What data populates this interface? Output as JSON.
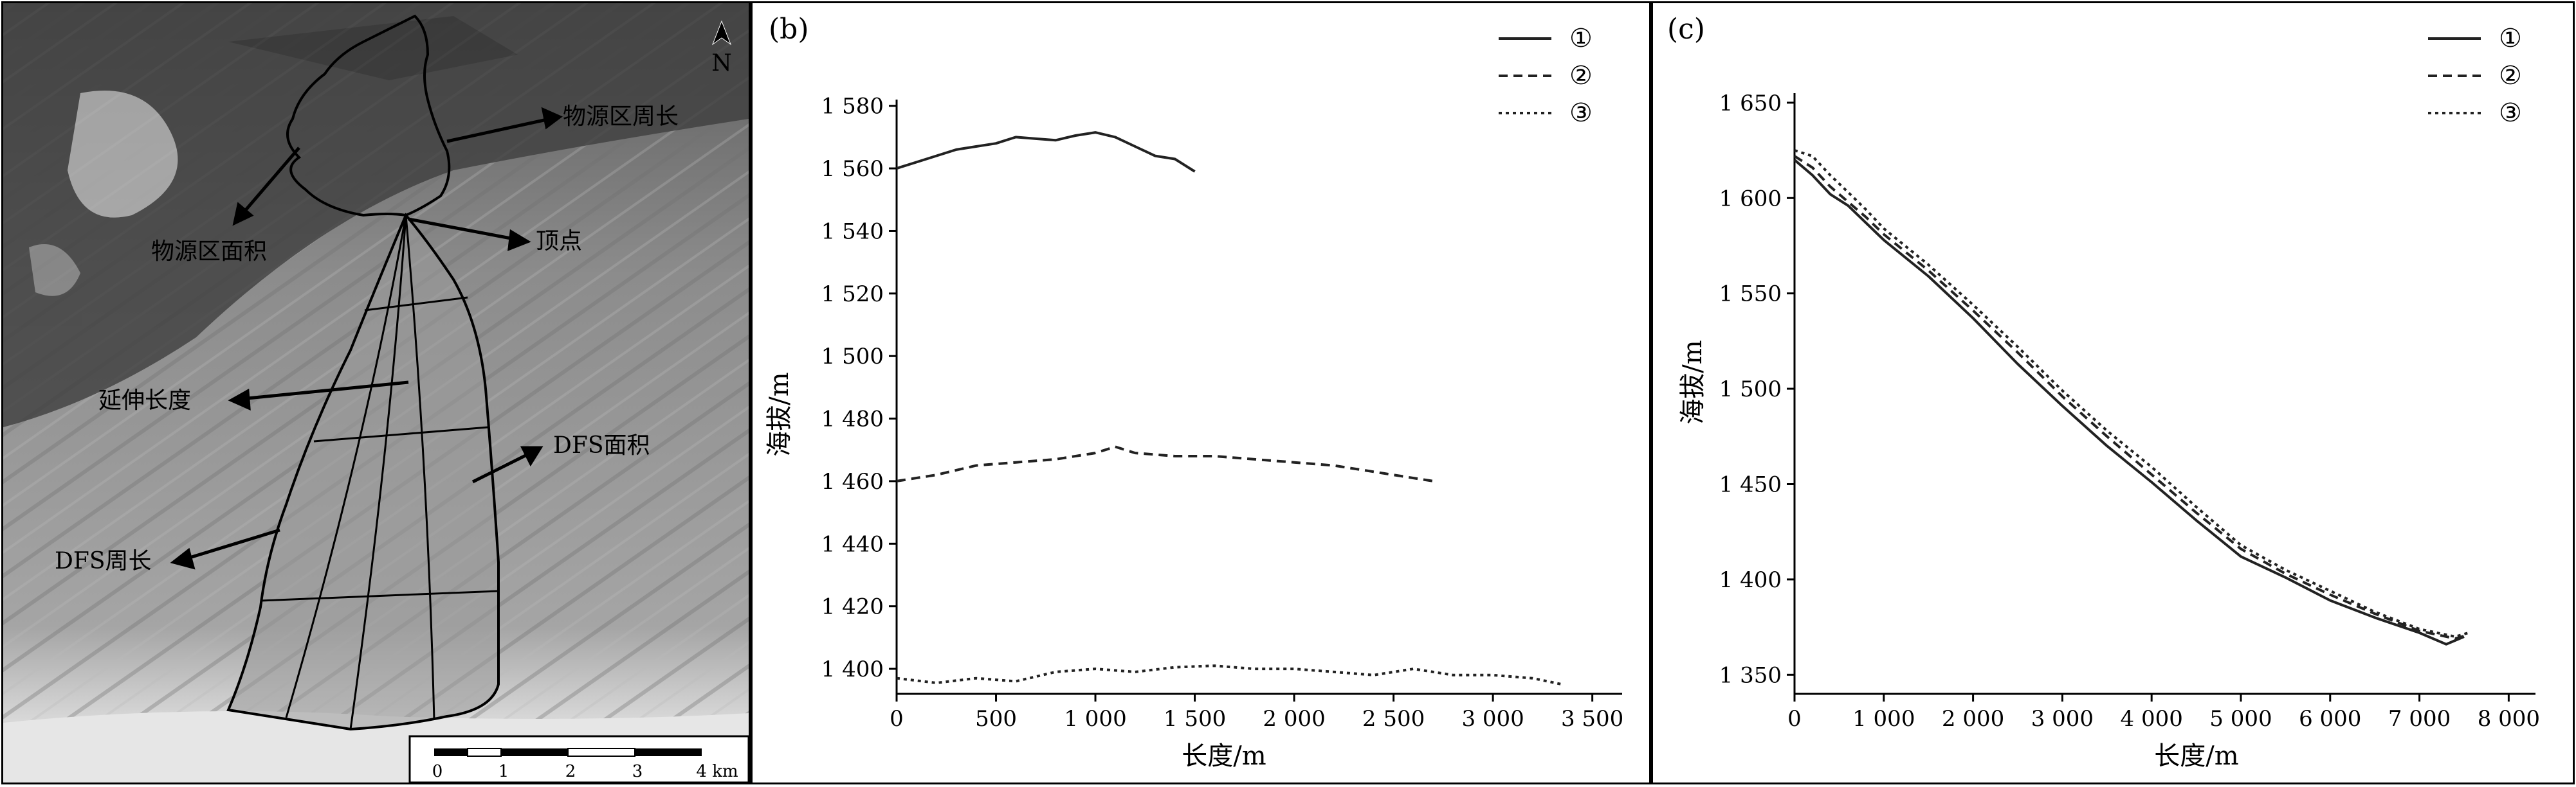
{
  "map": {
    "north_label": "N",
    "labels": {
      "source_perimeter": "物源区周长",
      "source_area": "物源区面积",
      "apex": "顶点",
      "extension_length": "延伸长度",
      "dfs_area": "DFS面积",
      "dfs_perimeter": "DFS周长"
    },
    "scale": {
      "ticks": [
        "0",
        "1",
        "2",
        "3"
      ],
      "last_tick": "4 km"
    }
  },
  "chart_data": [
    {
      "type": "line",
      "panel_label": "(b)",
      "xlabel": "长度/m",
      "ylabel": "海拔/m",
      "xlim": [
        0,
        3650
      ],
      "ylim": [
        1392,
        1582
      ],
      "x_ticks": [
        0,
        500,
        1000,
        1500,
        2000,
        2500,
        3000,
        3500
      ],
      "x_tick_labels": [
        "0",
        "500",
        "1 000",
        "1 500",
        "2 000",
        "2 500",
        "3 000",
        "3 500"
      ],
      "y_ticks": [
        1400,
        1420,
        1440,
        1460,
        1480,
        1500,
        1520,
        1540,
        1560,
        1580
      ],
      "y_tick_labels": [
        "1 400",
        "1 420",
        "1 440",
        "1 460",
        "1 480",
        "1 500",
        "1 520",
        "1 540",
        "1 560",
        "1 580"
      ],
      "legend_position": "top-right",
      "series": [
        {
          "name": "①",
          "style": "solid",
          "x": [
            0,
            100,
            200,
            300,
            400,
            500,
            600,
            700,
            800,
            900,
            1000,
            1100,
            1200,
            1300,
            1400,
            1500
          ],
          "y": [
            1560,
            1562,
            1564,
            1566,
            1567,
            1568,
            1570,
            1569.5,
            1569,
            1570.5,
            1571.5,
            1570,
            1567,
            1564,
            1563,
            1559
          ]
        },
        {
          "name": "②",
          "style": "dashed",
          "x": [
            0,
            200,
            400,
            600,
            800,
            1000,
            1100,
            1200,
            1400,
            1600,
            1800,
            2000,
            2200,
            2400,
            2600,
            2700
          ],
          "y": [
            1460,
            1462,
            1465,
            1466,
            1467,
            1469,
            1471,
            1469,
            1468,
            1468,
            1467,
            1466,
            1465,
            1463,
            1461,
            1460
          ]
        },
        {
          "name": "③",
          "style": "dotted",
          "x": [
            0,
            200,
            400,
            600,
            800,
            1000,
            1200,
            1400,
            1600,
            1800,
            2000,
            2200,
            2400,
            2600,
            2800,
            3000,
            3200,
            3350
          ],
          "y": [
            1397,
            1395.5,
            1397,
            1396,
            1399,
            1400,
            1399,
            1400.5,
            1401,
            1400,
            1400,
            1399,
            1398,
            1400,
            1398,
            1398,
            1397,
            1395
          ]
        }
      ]
    },
    {
      "type": "line",
      "panel_label": "(c)",
      "xlabel": "长度/m",
      "ylabel": "海拔/m",
      "xlim": [
        0,
        8300
      ],
      "ylim": [
        1340,
        1655
      ],
      "x_ticks": [
        0,
        1000,
        2000,
        3000,
        4000,
        5000,
        6000,
        7000,
        8000
      ],
      "x_tick_labels": [
        "0",
        "1 000",
        "2 000",
        "3 000",
        "4 000",
        "5 000",
        "6 000",
        "7 000",
        "8 000"
      ],
      "y_ticks": [
        1350,
        1400,
        1450,
        1500,
        1550,
        1600,
        1650
      ],
      "y_tick_labels": [
        "1 350",
        "1 400",
        "1 450",
        "1 500",
        "1 550",
        "1 600",
        "1 650"
      ],
      "legend_position": "top-right",
      "series": [
        {
          "name": "①",
          "style": "solid",
          "x": [
            0,
            200,
            400,
            600,
            800,
            1000,
            1500,
            2000,
            2500,
            3000,
            3500,
            4000,
            4500,
            5000,
            5500,
            6000,
            6500,
            7000,
            7300,
            7500
          ],
          "y": [
            1620,
            1612,
            1602,
            1596,
            1587,
            1578,
            1559,
            1537,
            1513,
            1491,
            1470,
            1451,
            1431,
            1412,
            1401,
            1389,
            1380,
            1372,
            1366,
            1370
          ]
        },
        {
          "name": "②",
          "style": "dashed",
          "x": [
            0,
            200,
            400,
            600,
            800,
            1000,
            1500,
            2000,
            2500,
            3000,
            3500,
            4000,
            4500,
            5000,
            5500,
            6000,
            6500,
            7000,
            7400,
            7550
          ],
          "y": [
            1622,
            1616,
            1606,
            1598,
            1590,
            1581,
            1562,
            1541,
            1519,
            1496,
            1475,
            1455,
            1435,
            1416,
            1403,
            1392,
            1382,
            1373,
            1369,
            1371
          ]
        },
        {
          "name": "③",
          "style": "dotted",
          "x": [
            0,
            200,
            400,
            600,
            800,
            1000,
            1500,
            2000,
            2500,
            3000,
            3500,
            4000,
            4500,
            5000,
            5500,
            6000,
            6500,
            7000,
            7400,
            7550
          ],
          "y": [
            1625,
            1622,
            1612,
            1603,
            1594,
            1584,
            1565,
            1544,
            1522,
            1499,
            1478,
            1459,
            1438,
            1418,
            1405,
            1394,
            1383,
            1374,
            1370,
            1372
          ]
        }
      ]
    }
  ]
}
